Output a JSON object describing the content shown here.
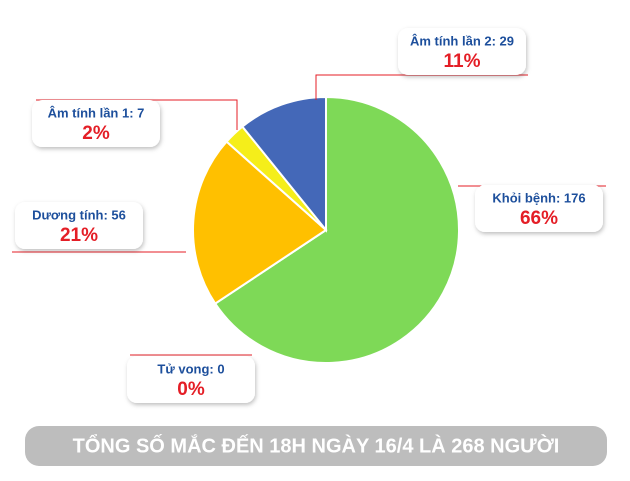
{
  "chart_data": {
    "type": "pie",
    "values": [
      176,
      0,
      56,
      7,
      29
    ],
    "value_labels": [
      "Khỏi bệnh: 176",
      "Tử vong: 0",
      "Dương tính: 56",
      "Âm tính lần 1: 7",
      "Âm tính lần 2: 29"
    ],
    "percents": [
      66,
      0,
      21,
      2,
      11
    ],
    "percent_labels": [
      "66%",
      "0%",
      "21%",
      "2%",
      "11%"
    ],
    "colors": [
      "#7ed957",
      "#7ed957",
      "#ffc000",
      "#f5ee1a",
      "#4468b8"
    ],
    "footer": "TỔNG SỐ MẮC ĐẾN 18H NGÀY 16/4 LÀ 268 NGƯỜI"
  }
}
